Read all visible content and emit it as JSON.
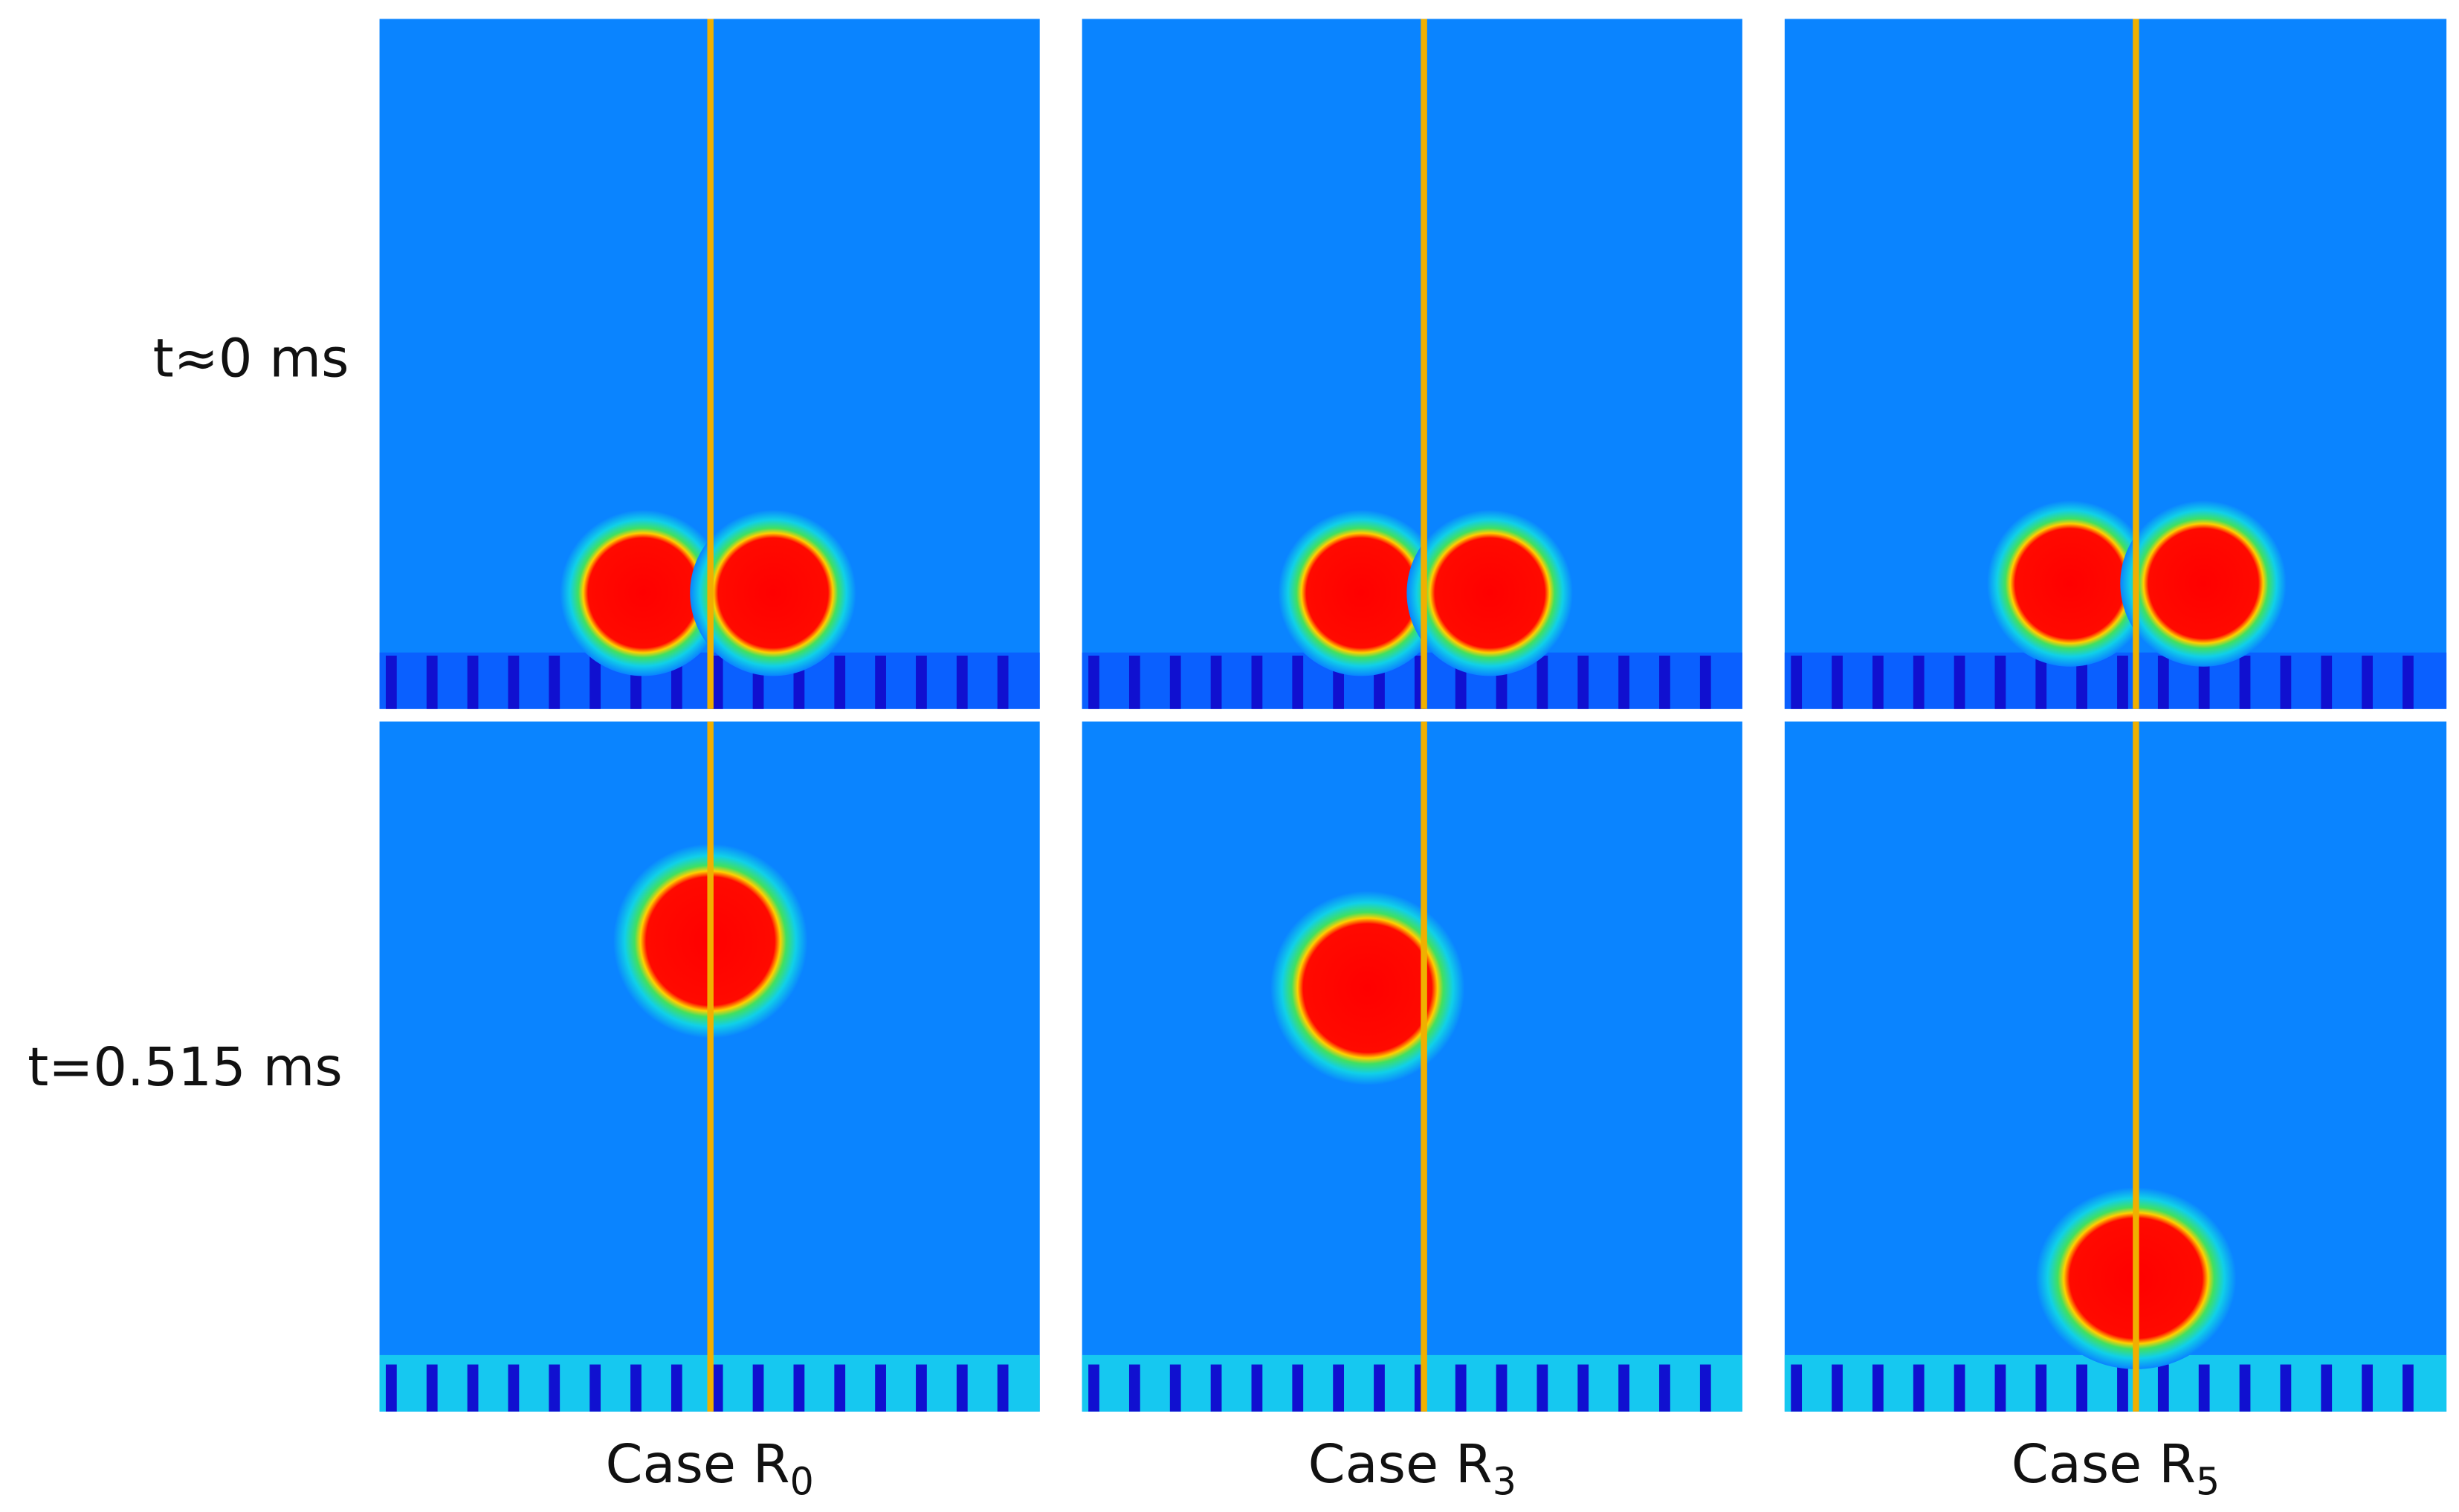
{
  "row_labels": [
    "t≈0 ms",
    "t=0.515 ms"
  ],
  "columns": [
    {
      "label": "Case R",
      "subscript": "0"
    },
    {
      "label": "Case R",
      "subscript": "3"
    },
    {
      "label": "Case R",
      "subscript": "5"
    }
  ]
}
